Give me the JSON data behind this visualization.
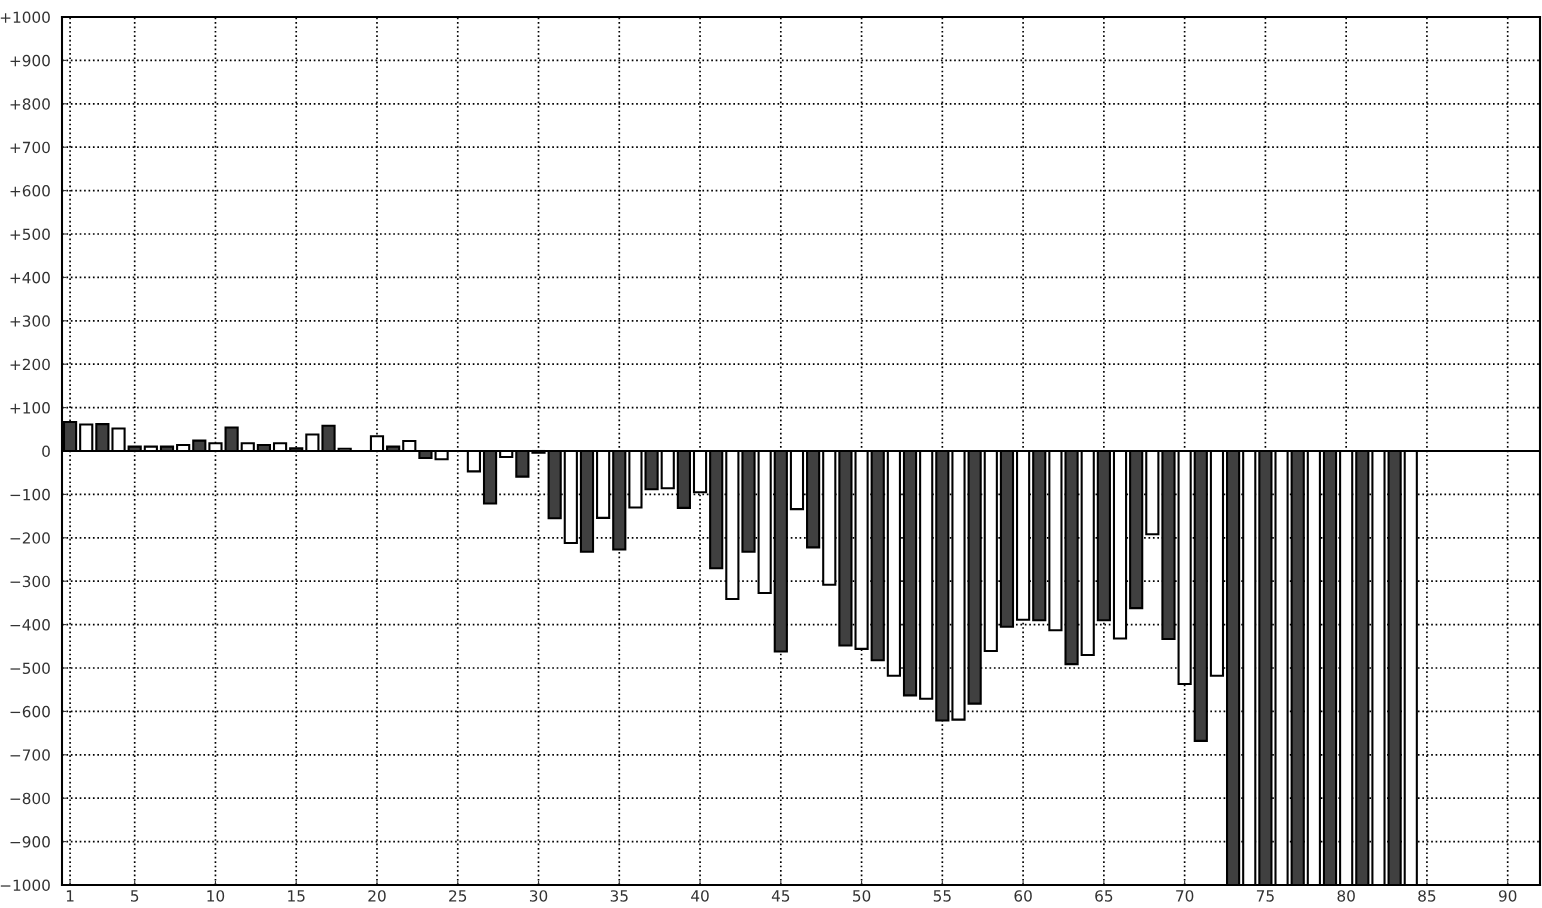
{
  "chart_data": {
    "type": "bar",
    "x": [
      1,
      2,
      3,
      4,
      5,
      6,
      7,
      8,
      9,
      10,
      11,
      12,
      13,
      14,
      15,
      16,
      17,
      18,
      19,
      20,
      21,
      22,
      23,
      24,
      25,
      26,
      27,
      28,
      29,
      30,
      31,
      32,
      33,
      34,
      35,
      36,
      37,
      38,
      39,
      40,
      41,
      42,
      43,
      44,
      45,
      46,
      47,
      48,
      49,
      50,
      51,
      52,
      53,
      54,
      55,
      56,
      57,
      58,
      59,
      60,
      61,
      62,
      63,
      64,
      65,
      66,
      67,
      68,
      69,
      70,
      71,
      72,
      73,
      74,
      75,
      76,
      77,
      78,
      79,
      80,
      81,
      82,
      83,
      84
    ],
    "values": [
      67,
      61,
      62,
      52,
      10,
      10,
      10,
      14,
      24,
      18,
      54,
      18,
      14,
      18,
      6,
      38,
      58,
      5,
      null,
      34,
      10,
      23,
      -16,
      -19,
      null,
      -47,
      -121,
      -14,
      -59,
      -4,
      -155,
      -212,
      -232,
      -154,
      -227,
      -130,
      -88,
      -86,
      -131,
      -95,
      -270,
      -341,
      -232,
      -327,
      -462,
      -134,
      -222,
      -308,
      -448,
      -456,
      -482,
      -518,
      -563,
      -571,
      -621,
      -619,
      -582,
      -461,
      -405,
      -389,
      -390,
      -413,
      -491,
      -470,
      -390,
      -432,
      -362,
      -192,
      -433,
      -537,
      -668,
      -518,
      -1000,
      -1000,
      -1000,
      -1000,
      -1000,
      -1000,
      -1000,
      -1000,
      -1000,
      -1000,
      -1000,
      -1000
    ],
    "colors": [
      "#404040",
      "#ffffff",
      "#404040",
      "#ffffff",
      "#404040",
      "#ffffff",
      "#404040",
      "#ffffff",
      "#404040",
      "#ffffff",
      "#404040",
      "#ffffff",
      "#404040",
      "#ffffff",
      "#404040",
      "#ffffff",
      "#404040",
      "#ffffff",
      "#404040",
      "#ffffff",
      "#404040",
      "#ffffff",
      "#404040",
      "#ffffff",
      "#404040",
      "#ffffff",
      "#404040",
      "#ffffff",
      "#404040",
      "#ffffff",
      "#404040",
      "#ffffff",
      "#404040",
      "#ffffff",
      "#404040",
      "#ffffff",
      "#404040",
      "#ffffff",
      "#404040",
      "#ffffff",
      "#404040",
      "#ffffff",
      "#404040",
      "#ffffff",
      "#404040",
      "#ffffff",
      "#404040",
      "#ffffff",
      "#404040",
      "#ffffff",
      "#404040",
      "#ffffff",
      "#404040",
      "#ffffff",
      "#404040",
      "#ffffff",
      "#404040",
      "#ffffff",
      "#404040",
      "#ffffff",
      "#404040",
      "#ffffff",
      "#404040",
      "#ffffff",
      "#404040",
      "#ffffff",
      "#404040",
      "#ffffff",
      "#404040",
      "#ffffff",
      "#404040",
      "#ffffff",
      "#404040",
      "#ffffff",
      "#404040",
      "#ffffff",
      "#404040",
      "#ffffff",
      "#404040",
      "#ffffff",
      "#404040",
      "#ffffff",
      "#404040",
      "#ffffff"
    ],
    "xlim": [
      0.5,
      92
    ],
    "xticks": [
      1,
      5,
      10,
      15,
      20,
      25,
      30,
      35,
      40,
      45,
      50,
      55,
      60,
      65,
      70,
      75,
      80,
      85,
      90
    ],
    "ylim": [
      -1000,
      1000
    ],
    "yticks": [
      {
        "value": 1000,
        "label": "+1000"
      },
      {
        "value": 900,
        "label": "+900"
      },
      {
        "value": 800,
        "label": "+800"
      },
      {
        "value": 700,
        "label": "+700"
      },
      {
        "value": 600,
        "label": "+600"
      },
      {
        "value": 500,
        "label": "+500"
      },
      {
        "value": 400,
        "label": "+400"
      },
      {
        "value": 300,
        "label": "+300"
      },
      {
        "value": 200,
        "label": "+200"
      },
      {
        "value": 100,
        "label": "+100"
      },
      0,
      {
        "value": -100,
        "label": "−100"
      },
      {
        "value": -200,
        "label": "−200"
      },
      {
        "value": -300,
        "label": "−300"
      },
      {
        "value": -400,
        "label": "−400"
      },
      {
        "value": -500,
        "label": "−500"
      },
      {
        "value": -600,
        "label": "−600"
      },
      {
        "value": -700,
        "label": "−700"
      },
      {
        "value": -800,
        "label": "−800"
      },
      {
        "value": -900,
        "label": "−900"
      },
      {
        "value": -1000,
        "label": "−1000"
      }
    ],
    "grid": true,
    "line_style": "dotted"
  }
}
